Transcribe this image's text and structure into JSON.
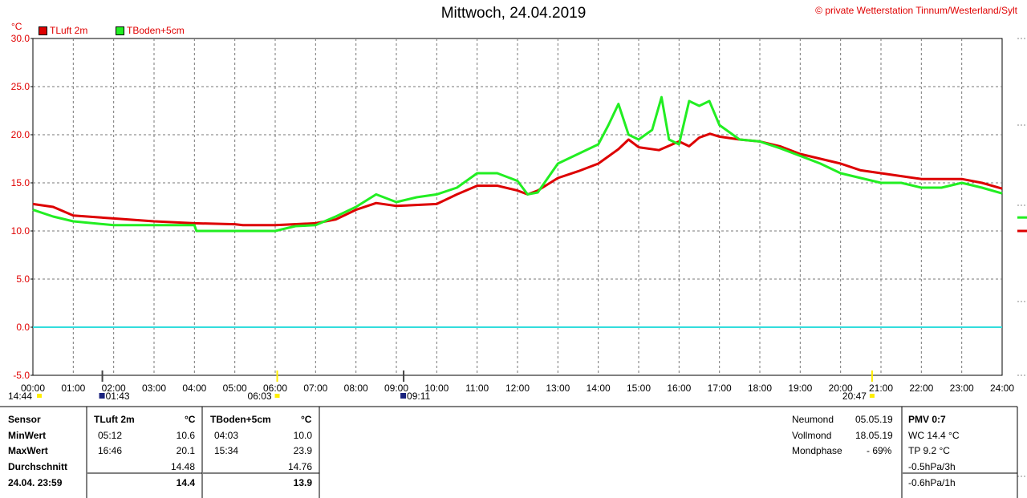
{
  "title": "Mittwoch, 24.04.2019",
  "copyright": "© private Wetterstation Tinnum/Westerland/Sylt",
  "unit": "°C",
  "colors": {
    "tluft": "#dd0000",
    "tboden": "#22ee22",
    "zero": "#33dddd",
    "grid": "#777777",
    "marker_yellow": "#ffee00",
    "marker_blue": "#1a237e"
  },
  "chart_data": {
    "type": "line",
    "xlabel": "",
    "ylabel": "°C",
    "ylim": [
      -5,
      30
    ],
    "xlim_hours": [
      0,
      24
    ],
    "y_ticks": [
      "30.0",
      "25.0",
      "20.0",
      "15.0",
      "10.0",
      "5.0",
      "0.0",
      "-5.0"
    ],
    "x_ticks": [
      "00:00",
      "01:00",
      "02:00",
      "03:00",
      "04:00",
      "05:00",
      "06:00",
      "07:00",
      "08:00",
      "09:00",
      "10:00",
      "11:00",
      "12:00",
      "13:00",
      "14:00",
      "15:00",
      "16:00",
      "17:00",
      "18:00",
      "19:00",
      "20:00",
      "21:00",
      "22:00",
      "23:00",
      "24:00"
    ],
    "grid": true,
    "series": [
      {
        "name": "TLuft 2m",
        "x": [
          "00:00",
          "00:30",
          "01:00",
          "02:00",
          "03:00",
          "04:00",
          "05:00",
          "05:12",
          "06:00",
          "07:00",
          "07:30",
          "08:00",
          "08:30",
          "09:00",
          "10:00",
          "10:30",
          "11:00",
          "11:30",
          "12:00",
          "12:15",
          "12:30",
          "13:00",
          "13:30",
          "14:00",
          "14:30",
          "14:45",
          "15:00",
          "15:30",
          "16:00",
          "16:15",
          "16:30",
          "16:46",
          "17:00",
          "17:30",
          "18:00",
          "18:30",
          "19:00",
          "19:30",
          "20:00",
          "20:30",
          "21:00",
          "21:30",
          "22:00",
          "23:00",
          "23:30",
          "24:00"
        ],
        "y": [
          12.8,
          12.5,
          11.6,
          11.3,
          11.0,
          10.8,
          10.7,
          10.6,
          10.6,
          10.8,
          11.2,
          12.2,
          12.9,
          12.6,
          12.8,
          13.8,
          14.7,
          14.7,
          14.2,
          13.8,
          14.2,
          15.5,
          16.2,
          17.0,
          18.5,
          19.5,
          18.7,
          18.4,
          19.3,
          18.8,
          19.7,
          20.1,
          19.8,
          19.5,
          19.3,
          18.8,
          18.0,
          17.5,
          17.0,
          16.3,
          16.0,
          15.7,
          15.4,
          15.4,
          15.0,
          14.4
        ]
      },
      {
        "name": "TBoden+5cm",
        "x": [
          "00:00",
          "00:30",
          "01:00",
          "02:00",
          "03:00",
          "04:00",
          "04:03",
          "05:00",
          "06:00",
          "06:30",
          "07:00",
          "07:30",
          "08:00",
          "08:30",
          "09:00",
          "09:30",
          "10:00",
          "10:30",
          "11:00",
          "11:30",
          "12:00",
          "12:15",
          "12:30",
          "13:00",
          "13:30",
          "14:00",
          "14:15",
          "14:30",
          "14:45",
          "15:00",
          "15:20",
          "15:34",
          "15:45",
          "16:00",
          "16:15",
          "16:30",
          "16:45",
          "17:00",
          "17:30",
          "18:00",
          "18:30",
          "19:00",
          "19:30",
          "20:00",
          "20:30",
          "21:00",
          "21:30",
          "22:00",
          "22:30",
          "23:00",
          "23:30",
          "24:00"
        ],
        "y": [
          12.2,
          11.5,
          11.0,
          10.6,
          10.6,
          10.6,
          10.0,
          10.0,
          10.0,
          10.5,
          10.6,
          11.5,
          12.5,
          13.8,
          13.0,
          13.5,
          13.8,
          14.5,
          16.0,
          16.0,
          15.2,
          13.8,
          14.0,
          17.0,
          18.0,
          19.0,
          21.0,
          23.2,
          20.0,
          19.5,
          20.5,
          23.9,
          19.5,
          19.0,
          23.5,
          23.0,
          23.5,
          21.0,
          19.5,
          19.3,
          18.6,
          17.8,
          17.0,
          16.0,
          15.5,
          15.0,
          15.0,
          14.5,
          14.5,
          15.0,
          14.5,
          13.9
        ]
      },
      {
        "name": "",
        "x": [
          "00:00",
          "24:00"
        ],
        "y": [
          0.0,
          0.0
        ]
      }
    ]
  },
  "markers": [
    {
      "label": "14:44",
      "hour": -0.7,
      "icon": "sun-marker",
      "color": "#ffee00"
    },
    {
      "label": "01:43",
      "hour": 1.72,
      "icon": "moon-marker",
      "color": "#1a237e"
    },
    {
      "label": "06:03",
      "hour": 6.05,
      "icon": "sunrise-marker",
      "color": "#ffee00"
    },
    {
      "label": "09:11",
      "hour": 9.18,
      "icon": "moon-marker",
      "color": "#1a237e"
    },
    {
      "label": "20:47",
      "hour": 20.78,
      "icon": "sunset-marker",
      "color": "#ffee00"
    }
  ],
  "table": {
    "headers": {
      "sensor": "Sensor",
      "tluft": "TLuft 2m",
      "tboden": "TBoden+5cm",
      "unit1": "°C",
      "unit2": "°C"
    },
    "rows": [
      {
        "label": "MinWert",
        "t1": "05:12",
        "v1": "10.6",
        "t2": "04:03",
        "v2": "10.0"
      },
      {
        "label": "MaxWert",
        "t1": "16:46",
        "v1": "20.1",
        "t2": "15:34",
        "v2": "23.9"
      },
      {
        "label": "Durchschnitt",
        "t1": "",
        "v1": "14.48",
        "t2": "",
        "v2": "14.76"
      },
      {
        "label": "24.04. 23:59",
        "t1": "",
        "v1": "14.4",
        "t2": "",
        "v2": "13.9"
      }
    ]
  },
  "moon": [
    {
      "label": "Neumond",
      "value": "05.05.19"
    },
    {
      "label": "Vollmond",
      "value": "18.05.19"
    },
    {
      "label": "Mondphase",
      "value": "- 69%"
    }
  ],
  "pmv": {
    "title": "PMV 0:7",
    "items": [
      "WC 14.4 °C",
      "TP 9.2 °C",
      "-0.5hPa/3h",
      "-0.6hPa/1h"
    ]
  }
}
